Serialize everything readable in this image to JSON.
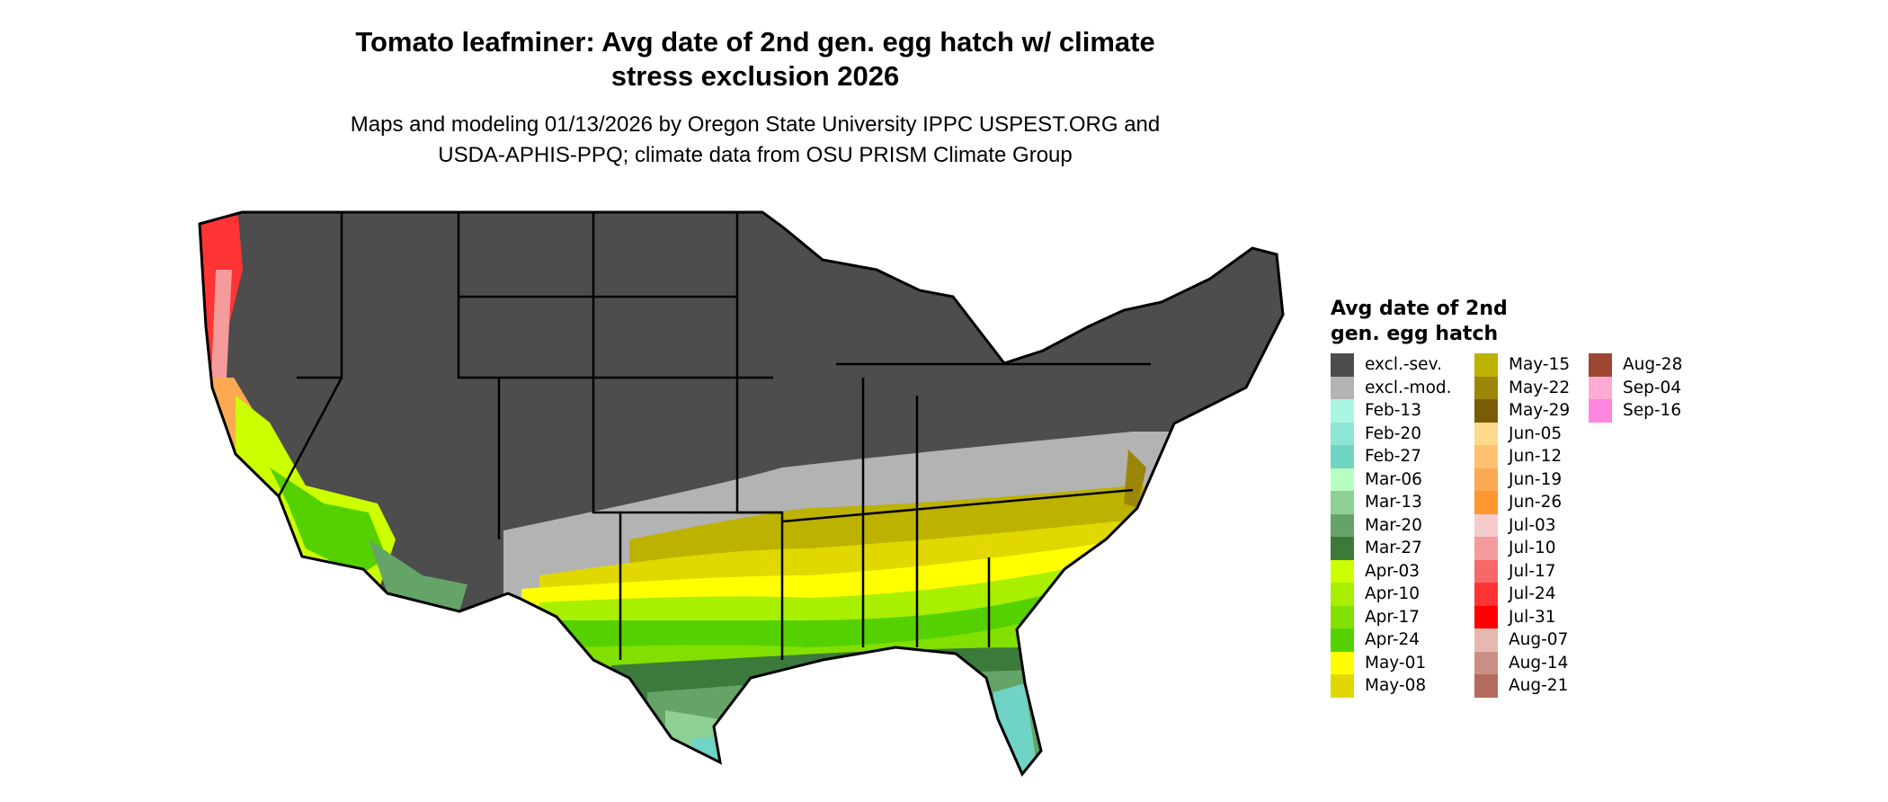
{
  "title": "Tomato leafminer: Avg date of 2nd gen. egg hatch w/ climate stress exclusion 2026",
  "title_lines": [
    "Tomato leafminer: Avg date of 2nd gen. egg hatch w/ climate",
    "stress exclusion 2026"
  ],
  "subtitle_lines": [
    "Maps and modeling 01/13/2026 by Oregon State University IPPC USPEST.ORG and",
    "USDA-APHIS-PPQ; climate data from OSU PRISM Climate Group"
  ],
  "legend": {
    "title_lines": [
      "Avg date of 2nd",
      "gen. egg hatch"
    ],
    "items": [
      {
        "label": "excl.-sev.",
        "color": "#4d4d4d"
      },
      {
        "label": "excl.-mod.",
        "color": "#b3b3b3"
      },
      {
        "label": "Feb-13",
        "color": "#aaf5e3"
      },
      {
        "label": "Feb-20",
        "color": "#8ce6d3"
      },
      {
        "label": "Feb-27",
        "color": "#6fd4c3"
      },
      {
        "label": "Mar-06",
        "color": "#b7ffc1"
      },
      {
        "label": "Mar-13",
        "color": "#8fd195"
      },
      {
        "label": "Mar-20",
        "color": "#64a468"
      },
      {
        "label": "Mar-27",
        "color": "#3c7a3c"
      },
      {
        "label": "Apr-03",
        "color": "#ccff00"
      },
      {
        "label": "Apr-10",
        "color": "#a8ef00"
      },
      {
        "label": "Apr-17",
        "color": "#82e000"
      },
      {
        "label": "Apr-24",
        "color": "#55d100"
      },
      {
        "label": "May-01",
        "color": "#ffff00"
      },
      {
        "label": "May-08",
        "color": "#e0d800"
      },
      {
        "label": "May-15",
        "color": "#bdb200"
      },
      {
        "label": "May-22",
        "color": "#9c8608"
      },
      {
        "label": "May-29",
        "color": "#7a5c08"
      },
      {
        "label": "Jun-05",
        "color": "#ffd98c"
      },
      {
        "label": "Jun-12",
        "color": "#ffc170"
      },
      {
        "label": "Jun-19",
        "color": "#fcaa52"
      },
      {
        "label": "Jun-26",
        "color": "#ff9632"
      },
      {
        "label": "Jul-03",
        "color": "#f5cccc"
      },
      {
        "label": "Jul-10",
        "color": "#f59b9b"
      },
      {
        "label": "Jul-17",
        "color": "#f76868"
      },
      {
        "label": "Jul-24",
        "color": "#ff3434"
      },
      {
        "label": "Jul-31",
        "color": "#ff0000"
      },
      {
        "label": "Aug-07",
        "color": "#e6b8b0"
      },
      {
        "label": "Aug-14",
        "color": "#c98f84"
      },
      {
        "label": "Aug-21",
        "color": "#b36b5e"
      },
      {
        "label": "Aug-28",
        "color": "#9c4633"
      },
      {
        "label": "Sep-04",
        "color": "#ffabd6"
      },
      {
        "label": "Sep-16",
        "color": "#ff85de"
      }
    ]
  }
}
